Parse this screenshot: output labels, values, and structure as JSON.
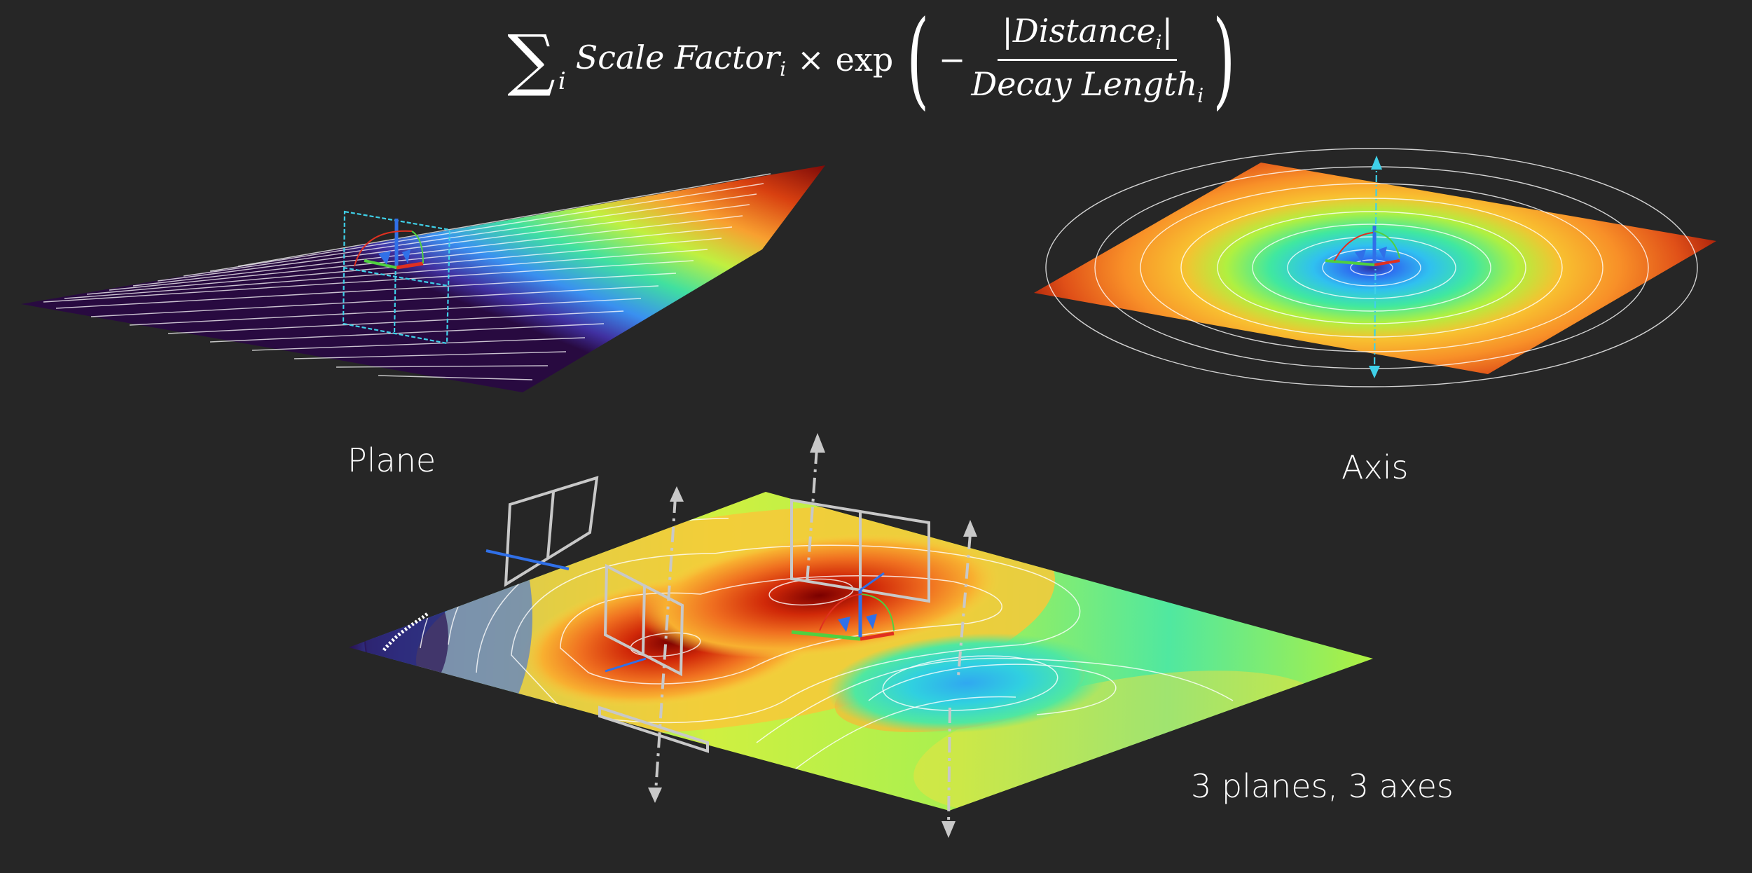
{
  "formula": {
    "sum_symbol": "∑",
    "sum_index": "i",
    "term1": "Scale Factor",
    "term1_sub": "i",
    "times": "×",
    "exp": "exp",
    "open_paren": "(",
    "minus": "−",
    "numerator": "|Distance",
    "numerator_sub": "i",
    "numerator_close": "|",
    "denominator": "Decay Length",
    "denominator_sub": "i",
    "close_paren": ")"
  },
  "panels": {
    "plane_label": "Plane",
    "axis_label": "Axis",
    "combined_label": "3 planes, 3 axes"
  },
  "colors": {
    "background": "#262626",
    "contour": "#ffffff",
    "gizmo_cyan": "#3fd0e8",
    "gizmo_gray": "#c8c8c8",
    "axis_red": "#e03020",
    "axis_green": "#50d040",
    "axis_blue": "#3070e8"
  }
}
